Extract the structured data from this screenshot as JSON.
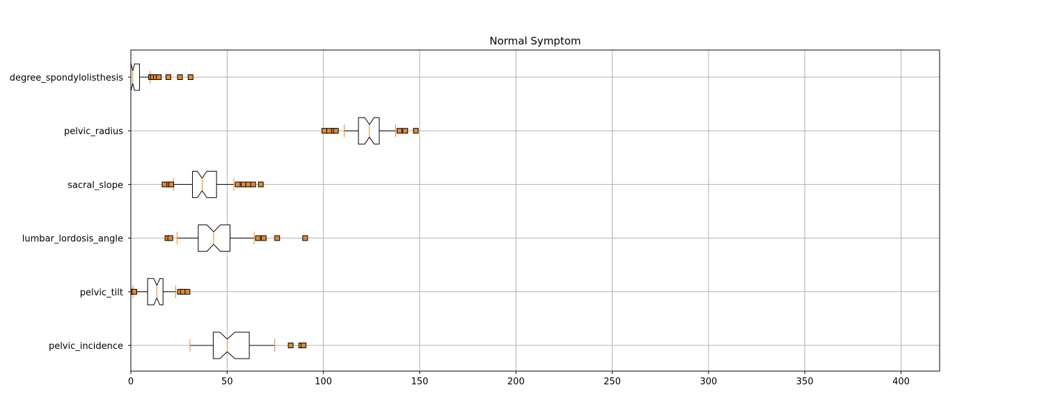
{
  "chart_data": {
    "type": "boxplot",
    "orientation": "horizontal",
    "notched": true,
    "title": "Normal Symptom",
    "xlim": [
      0,
      420
    ],
    "xticks": [
      0,
      50,
      100,
      150,
      200,
      250,
      300,
      350,
      400
    ],
    "grid": true,
    "colors": {
      "box_edge": "#000000",
      "median": "#ff7f0e",
      "flier_fill": "#e08a2c",
      "flier_edge": "#000000",
      "grid": "#b0b0b0"
    },
    "categories": [
      {
        "name": "pelvic_incidence",
        "whisker_low": 30.7,
        "q1": 42.8,
        "median": 50.1,
        "q3": 61.5,
        "whisker_high": 74.7,
        "notch_low": 46.2,
        "notch_high": 54.0,
        "outliers": [
          83.0,
          88.5,
          89.7
        ]
      },
      {
        "name": "pelvic_tilt",
        "whisker_low": 1.1,
        "q1": 8.7,
        "median": 13.5,
        "q3": 16.7,
        "whisker_high": 23.3,
        "notch_low": 11.9,
        "notch_high": 15.1,
        "outliers": [
          -0.7,
          0.6,
          1.8,
          25.5,
          27.0,
          29.4
        ]
      },
      {
        "name": "lumbar_lordosis_angle",
        "whisker_low": 24.0,
        "q1": 35.0,
        "median": 43.0,
        "q3": 51.5,
        "whisker_high": 64.0,
        "notch_low": 39.5,
        "notch_high": 46.5,
        "outliers": [
          19.0,
          20.5,
          66.0,
          69.0,
          76.0,
          90.5
        ]
      },
      {
        "name": "sacral_slope",
        "whisker_low": 22.2,
        "q1": 32.0,
        "median": 37.0,
        "q3": 44.5,
        "whisker_high": 53.5,
        "notch_low": 34.5,
        "notch_high": 39.5,
        "outliers": [
          17.5,
          20.0,
          21.0,
          55.5,
          58.5,
          61.0,
          63.5,
          67.5
        ]
      },
      {
        "name": "pelvic_radius",
        "whisker_low": 110.8,
        "q1": 118.2,
        "median": 123.9,
        "q3": 129.0,
        "whisker_high": 137.5,
        "notch_low": 121.5,
        "notch_high": 126.3,
        "outliers": [
          100.5,
          103.0,
          105.5,
          106.5,
          139.5,
          142.5,
          148.0
        ]
      },
      {
        "name": "degree_spondylolisthesis",
        "whisker_low": -5.0,
        "q1": -0.7,
        "median": 1.0,
        "q3": 4.5,
        "whisker_high": 10.0,
        "notch_low": 0.1,
        "notch_high": 1.9,
        "outliers": [
          10.5,
          11.5,
          13.0,
          14.5,
          19.5,
          25.5,
          31.0
        ]
      }
    ]
  }
}
